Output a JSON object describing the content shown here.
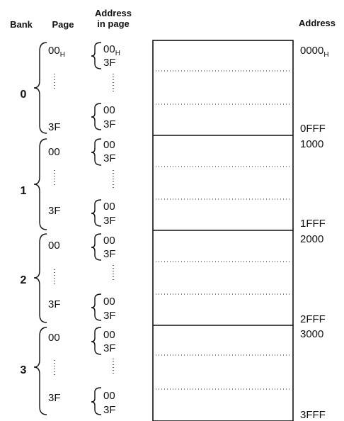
{
  "headers": {
    "bank": "Bank",
    "page": "Page",
    "address_in_page_line1": "Address",
    "address_in_page_line2": "in page",
    "address": "Address"
  },
  "hex_suffix": "H",
  "banks": [
    {
      "bank": "0",
      "first_page": "00",
      "first_page_suffix": "H",
      "last_page": "3F",
      "page_start_offset": "00",
      "page_start_offset_suffix": "H",
      "page_end_offset": "3F",
      "last_page_start_offset": "00",
      "last_page_end_offset": "3F",
      "start_address": "0000",
      "start_address_suffix": "H",
      "end_address": "0FFF"
    },
    {
      "bank": "1",
      "first_page": "00",
      "first_page_suffix": "",
      "last_page": "3F",
      "page_start_offset": "00",
      "page_start_offset_suffix": "",
      "page_end_offset": "3F",
      "last_page_start_offset": "00",
      "last_page_end_offset": "3F",
      "start_address": "1000",
      "start_address_suffix": "",
      "end_address": "1FFF"
    },
    {
      "bank": "2",
      "first_page": "00",
      "first_page_suffix": "",
      "last_page": "3F",
      "page_start_offset": "00",
      "page_start_offset_suffix": "",
      "page_end_offset": "3F",
      "last_page_start_offset": "00",
      "last_page_end_offset": "3F",
      "start_address": "2000",
      "start_address_suffix": "",
      "end_address": "2FFF"
    },
    {
      "bank": "3",
      "first_page": "00",
      "first_page_suffix": "",
      "last_page": "3F",
      "page_start_offset": "00",
      "page_start_offset_suffix": "",
      "page_end_offset": "3F",
      "last_page_start_offset": "00",
      "last_page_end_offset": "3F",
      "start_address": "3000",
      "start_address_suffix": "",
      "end_address": "3FFF"
    }
  ]
}
